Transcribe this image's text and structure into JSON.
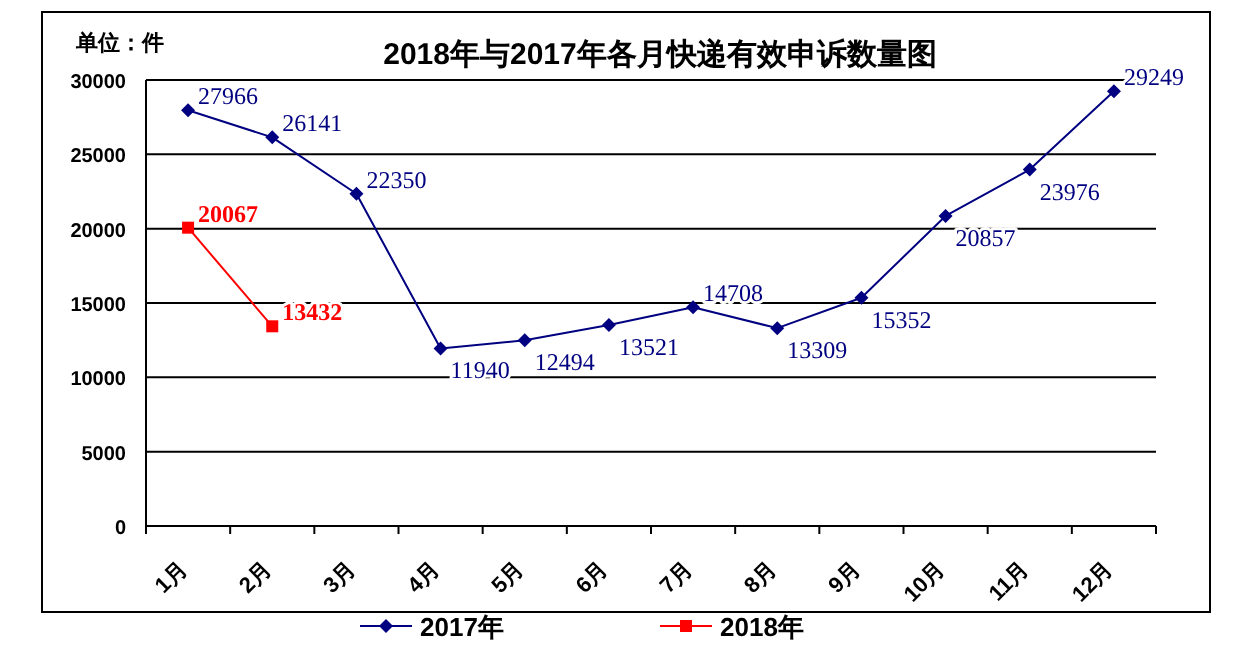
{
  "chart_data": {
    "type": "line",
    "title": "2018年与2017年各月快递有效申诉数量图",
    "annotations": [
      "单位：件"
    ],
    "categories": [
      "1月",
      "2月",
      "3月",
      "4月",
      "5月",
      "6月",
      "7月",
      "8月",
      "9月",
      "10月",
      "11月",
      "12月"
    ],
    "series": [
      {
        "name": "2017年",
        "color": "#000080",
        "marker": "diamond",
        "values": [
          27966,
          26141,
          22350,
          11940,
          12494,
          13521,
          14708,
          13309,
          15352,
          20857,
          23976,
          29249
        ]
      },
      {
        "name": "2018年",
        "color": "#ff0000",
        "marker": "square",
        "values": [
          20067,
          13432,
          null,
          null,
          null,
          null,
          null,
          null,
          null,
          null,
          null,
          null
        ]
      }
    ],
    "ylim": [
      0,
      30000
    ],
    "yticks": [
      0,
      5000,
      10000,
      15000,
      20000,
      25000,
      30000
    ],
    "grid": "y",
    "legend": "bottom",
    "data_labels": true
  }
}
